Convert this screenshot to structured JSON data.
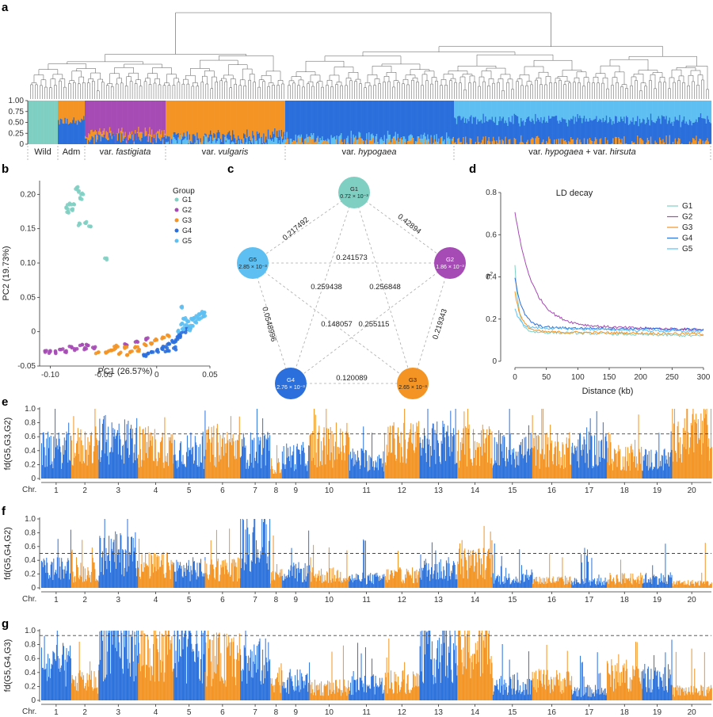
{
  "colors": {
    "G1": "#7fcfc3",
    "G2": "#a64bb5",
    "G3": "#f39424",
    "G4": "#2b6fdc",
    "G5": "#5ec0f2",
    "chrA": "#2c72dc",
    "chrB": "#f39424"
  },
  "panels": {
    "a": "a",
    "b": "b",
    "c": "c",
    "d": "d",
    "e": "e",
    "f": "f",
    "g": "g"
  },
  "panel_a": {
    "y_ticks": [
      "1.00",
      "0.75",
      "0.50",
      "0.25",
      "0"
    ],
    "groups": [
      "Wild",
      "Adm",
      "var. fastigiata",
      "var. vulgaris",
      "var. hypogaea",
      "var. hypogaea + var. hirsuta"
    ]
  },
  "chart_data": [
    {
      "type": "scatter",
      "panel": "b",
      "xlabel": "PC1 (26.57%)",
      "ylabel": "PC2 (19.73%)",
      "xlim": [
        -0.11,
        0.05
      ],
      "ylim": [
        -0.05,
        0.22
      ],
      "x_ticks": [
        "-0.10",
        "-0.05",
        "0",
        "0.05"
      ],
      "y_ticks": [
        "-0.05",
        "0",
        "0.05",
        "0.10",
        "0.15",
        "0.20"
      ],
      "legend_title": "Group",
      "legend_position": "top-right",
      "series": [
        {
          "name": "G1",
          "points": [
            [
              -0.075,
              0.21
            ],
            [
              -0.073,
              0.205
            ],
            [
              -0.071,
              0.2
            ],
            [
              -0.072,
              0.195
            ],
            [
              -0.082,
              0.185
            ],
            [
              -0.085,
              0.18
            ],
            [
              -0.08,
              0.178
            ],
            [
              -0.083,
              0.175
            ],
            [
              -0.066,
              0.16
            ],
            [
              -0.072,
              0.157
            ],
            [
              -0.062,
              0.153
            ],
            [
              -0.047,
              0.107
            ],
            [
              -0.078,
              0.186
            ]
          ]
        },
        {
          "name": "G2",
          "points": [
            [
              -0.105,
              -0.028
            ],
            [
              -0.1,
              -0.029
            ],
            [
              -0.095,
              -0.03
            ],
            [
              -0.09,
              -0.026
            ],
            [
              -0.085,
              -0.028
            ],
            [
              -0.08,
              -0.022
            ],
            [
              -0.077,
              -0.025
            ],
            [
              -0.072,
              -0.02
            ],
            [
              -0.068,
              -0.026
            ],
            [
              -0.065,
              -0.02
            ],
            [
              -0.06,
              -0.023
            ],
            [
              -0.03,
              -0.018
            ],
            [
              -0.02,
              -0.015
            ],
            [
              -0.01,
              -0.01
            ]
          ]
        },
        {
          "name": "G3",
          "points": [
            [
              -0.055,
              -0.03
            ],
            [
              -0.048,
              -0.03
            ],
            [
              -0.045,
              -0.028
            ],
            [
              -0.04,
              -0.026
            ],
            [
              -0.035,
              -0.032
            ],
            [
              -0.03,
              -0.024
            ],
            [
              -0.025,
              -0.03
            ],
            [
              -0.02,
              -0.022
            ],
            [
              -0.018,
              -0.028
            ],
            [
              -0.01,
              -0.02
            ],
            [
              -0.005,
              -0.018
            ],
            [
              0.0,
              -0.012
            ],
            [
              0.005,
              -0.01
            ],
            [
              0.01,
              -0.005
            ],
            [
              -0.038,
              -0.02
            ],
            [
              -0.028,
              -0.034
            ]
          ]
        },
        {
          "name": "G4",
          "points": [
            [
              -0.012,
              -0.035
            ],
            [
              -0.008,
              -0.032
            ],
            [
              -0.005,
              -0.03
            ],
            [
              0.0,
              -0.028
            ],
            [
              0.005,
              -0.025
            ],
            [
              0.008,
              -0.022
            ],
            [
              0.012,
              -0.018
            ],
            [
              0.015,
              -0.015
            ],
            [
              0.018,
              -0.012
            ],
            [
              0.02,
              -0.008
            ],
            [
              0.022,
              -0.005
            ],
            [
              0.025,
              0.0
            ],
            [
              0.028,
              0.003
            ],
            [
              0.03,
              0.006
            ],
            [
              0.01,
              -0.028
            ],
            [
              0.016,
              -0.024
            ]
          ]
        },
        {
          "name": "G5",
          "points": [
            [
              0.02,
              0.0
            ],
            [
              0.025,
              0.005
            ],
            [
              0.028,
              0.01
            ],
            [
              0.03,
              0.015
            ],
            [
              0.033,
              0.018
            ],
            [
              0.035,
              0.02
            ],
            [
              0.038,
              0.022
            ],
            [
              0.04,
              0.025
            ],
            [
              0.042,
              0.027
            ],
            [
              0.045,
              0.028
            ],
            [
              0.024,
              0.012
            ],
            [
              0.027,
              0.02
            ],
            [
              0.032,
              0.009
            ],
            [
              0.036,
              0.014
            ],
            [
              0.04,
              0.018
            ],
            [
              0.044,
              0.022
            ],
            [
              0.023,
              0.036
            ],
            [
              0.03,
              0.003
            ]
          ]
        }
      ]
    },
    {
      "type": "network",
      "panel": "c",
      "nodes": [
        {
          "id": "G1",
          "value": "0.72 × 10⁻³"
        },
        {
          "id": "G2",
          "value": "1.86 × 10⁻³"
        },
        {
          "id": "G3",
          "value": "2.65 × 10⁻³"
        },
        {
          "id": "G4",
          "value": "2.76 × 10⁻³"
        },
        {
          "id": "G5",
          "value": "2.85 × 10⁻³"
        }
      ],
      "edges": [
        {
          "a": "G1",
          "b": "G5",
          "value": "0.217492"
        },
        {
          "a": "G1",
          "b": "G2",
          "value": "0.42894"
        },
        {
          "a": "G5",
          "b": "G2",
          "value": "0.241573"
        },
        {
          "a": "G5",
          "b": "G3",
          "value": "0.259438"
        },
        {
          "a": "G1",
          "b": "G3",
          "value": "0.256848"
        },
        {
          "a": "G5",
          "b": "G4",
          "value": "0.0548996"
        },
        {
          "a": "G1",
          "b": "G4",
          "value": "0.148057"
        },
        {
          "a": "G2",
          "b": "G4",
          "value": "0.255115"
        },
        {
          "a": "G2",
          "b": "G3",
          "value": "0.219343"
        },
        {
          "a": "G4",
          "b": "G3",
          "value": "0.120089"
        }
      ]
    },
    {
      "type": "line",
      "panel": "d",
      "title": "LD decay",
      "xlabel": "Distance (kb)",
      "ylabel": "r",
      "ylabel_sup": "2",
      "xlim": [
        0,
        300
      ],
      "ylim": [
        0,
        0.8
      ],
      "x_ticks": [
        "0",
        "50",
        "100",
        "150",
        "200",
        "250",
        "300"
      ],
      "y_ticks": [
        "0",
        "0.2",
        "0.4",
        "0.6",
        "0.8"
      ],
      "legend_position": "top-right",
      "series": [
        {
          "name": "G1",
          "peak": 0.45,
          "plateau": 0.14,
          "end": 0.12,
          "decay_kb": 6
        },
        {
          "name": "G2",
          "peak": 0.71,
          "plateau": 0.17,
          "end": 0.15,
          "decay_kb": 28
        },
        {
          "name": "G3",
          "peak": 0.33,
          "plateau": 0.14,
          "end": 0.13,
          "decay_kb": 10
        },
        {
          "name": "G4",
          "peak": 0.4,
          "plateau": 0.16,
          "end": 0.15,
          "decay_kb": 12
        },
        {
          "name": "G5",
          "peak": 0.25,
          "plateau": 0.16,
          "end": 0.14,
          "decay_kb": 8
        }
      ]
    },
    {
      "type": "bar",
      "panel": "e",
      "ylabel": "fd(G5,G3,G2)",
      "ylim": [
        0,
        1.0
      ],
      "y_ticks": [
        "0",
        "0.2",
        "0.4",
        "0.6",
        "0.8",
        "1.0"
      ],
      "threshold": 0.64,
      "chromosome_prefix": "Chr.",
      "chromosomes": [
        "1",
        "2",
        "3",
        "4",
        "5",
        "6",
        "7",
        "8",
        "9",
        "10",
        "11",
        "12",
        "13",
        "14",
        "15",
        "16",
        "17",
        "18",
        "19",
        "20"
      ],
      "chromosome_means": [
        0.45,
        0.5,
        0.6,
        0.5,
        0.45,
        0.5,
        0.45,
        0.2,
        0.35,
        0.5,
        0.3,
        0.55,
        0.55,
        0.5,
        0.45,
        0.45,
        0.45,
        0.35,
        0.3,
        0.7
      ]
    },
    {
      "type": "bar",
      "panel": "f",
      "ylabel": "fd(G5,G4,G2)",
      "ylim": [
        0,
        1.0
      ],
      "y_ticks": [
        "0",
        "0.2",
        "0.4",
        "0.6",
        "0.8",
        "1.0"
      ],
      "threshold": 0.5,
      "chromosome_prefix": "Chr.",
      "chromosomes": [
        "1",
        "2",
        "3",
        "4",
        "5",
        "6",
        "7",
        "8",
        "9",
        "10",
        "11",
        "12",
        "13",
        "14",
        "15",
        "16",
        "17",
        "18",
        "19",
        "20"
      ],
      "chromosome_means": [
        0.3,
        0.25,
        0.55,
        0.35,
        0.3,
        0.3,
        0.75,
        0.2,
        0.25,
        0.2,
        0.15,
        0.2,
        0.3,
        0.4,
        0.15,
        0.12,
        0.1,
        0.15,
        0.15,
        0.08
      ]
    },
    {
      "type": "bar",
      "panel": "g",
      "ylabel": "fd(G5,G4,G3)",
      "ylim": [
        0,
        1.0
      ],
      "y_ticks": [
        "0",
        "0.2",
        "0.4",
        "0.6",
        "0.8",
        "1.0"
      ],
      "threshold": 0.93,
      "chromosome_prefix": "Chr.",
      "chromosomes": [
        "1",
        "2",
        "3",
        "4",
        "5",
        "6",
        "7",
        "8",
        "9",
        "10",
        "11",
        "12",
        "13",
        "14",
        "15",
        "16",
        "17",
        "18",
        "19",
        "20"
      ],
      "chromosome_means": [
        0.55,
        0.3,
        0.9,
        0.75,
        0.8,
        0.65,
        0.6,
        0.35,
        0.3,
        0.2,
        0.25,
        0.3,
        0.75,
        0.8,
        0.25,
        0.3,
        0.15,
        0.4,
        0.35,
        0.15
      ]
    }
  ]
}
